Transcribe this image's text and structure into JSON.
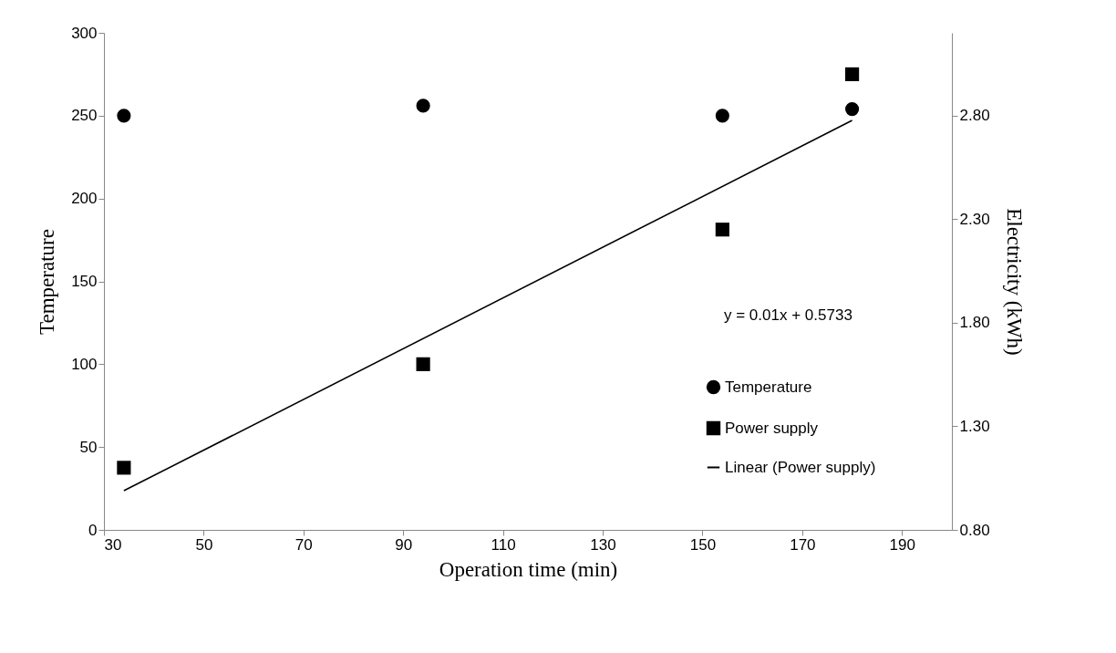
{
  "chart_data": {
    "type": "scatter",
    "xlabel": "Operation time (min)",
    "ylabel": "Temperature",
    "y2label": "Electricity (kWh)",
    "xlim": [
      30,
      200
    ],
    "xticks": [
      30,
      50,
      70,
      90,
      110,
      130,
      150,
      170,
      190
    ],
    "ylim": [
      0,
      300
    ],
    "yticks": [
      0,
      50,
      100,
      150,
      200,
      250,
      300
    ],
    "y2lim": [
      0.8,
      3.2
    ],
    "y2ticks": [
      {
        "value": 0.8,
        "label": "0.80"
      },
      {
        "value": 1.3,
        "label": "1.30"
      },
      {
        "value": 1.8,
        "label": "1.80"
      },
      {
        "value": 2.3,
        "label": "2.30"
      },
      {
        "value": 2.8,
        "label": "2.80"
      }
    ],
    "x": [
      34,
      94,
      154,
      180
    ],
    "series": [
      {
        "name": "Temperature",
        "marker": "circle",
        "color": "#000000",
        "values": [
          250,
          256,
          250,
          254
        ]
      },
      {
        "name": "Power supply",
        "marker": "square",
        "axis": "y2",
        "color": "#000000",
        "values": [
          1.1,
          1.6,
          2.25,
          3.0
        ]
      },
      {
        "name": "Linear (Power supply)",
        "type": "line",
        "marker": "none",
        "axis": "y2",
        "color": "#000000",
        "x": [
          34,
          180
        ],
        "values": [
          0.989,
          2.777
        ]
      }
    ],
    "annotations": [
      "y = 0.01x + 0.5733"
    ],
    "legend": "bottom right",
    "grid": false
  }
}
